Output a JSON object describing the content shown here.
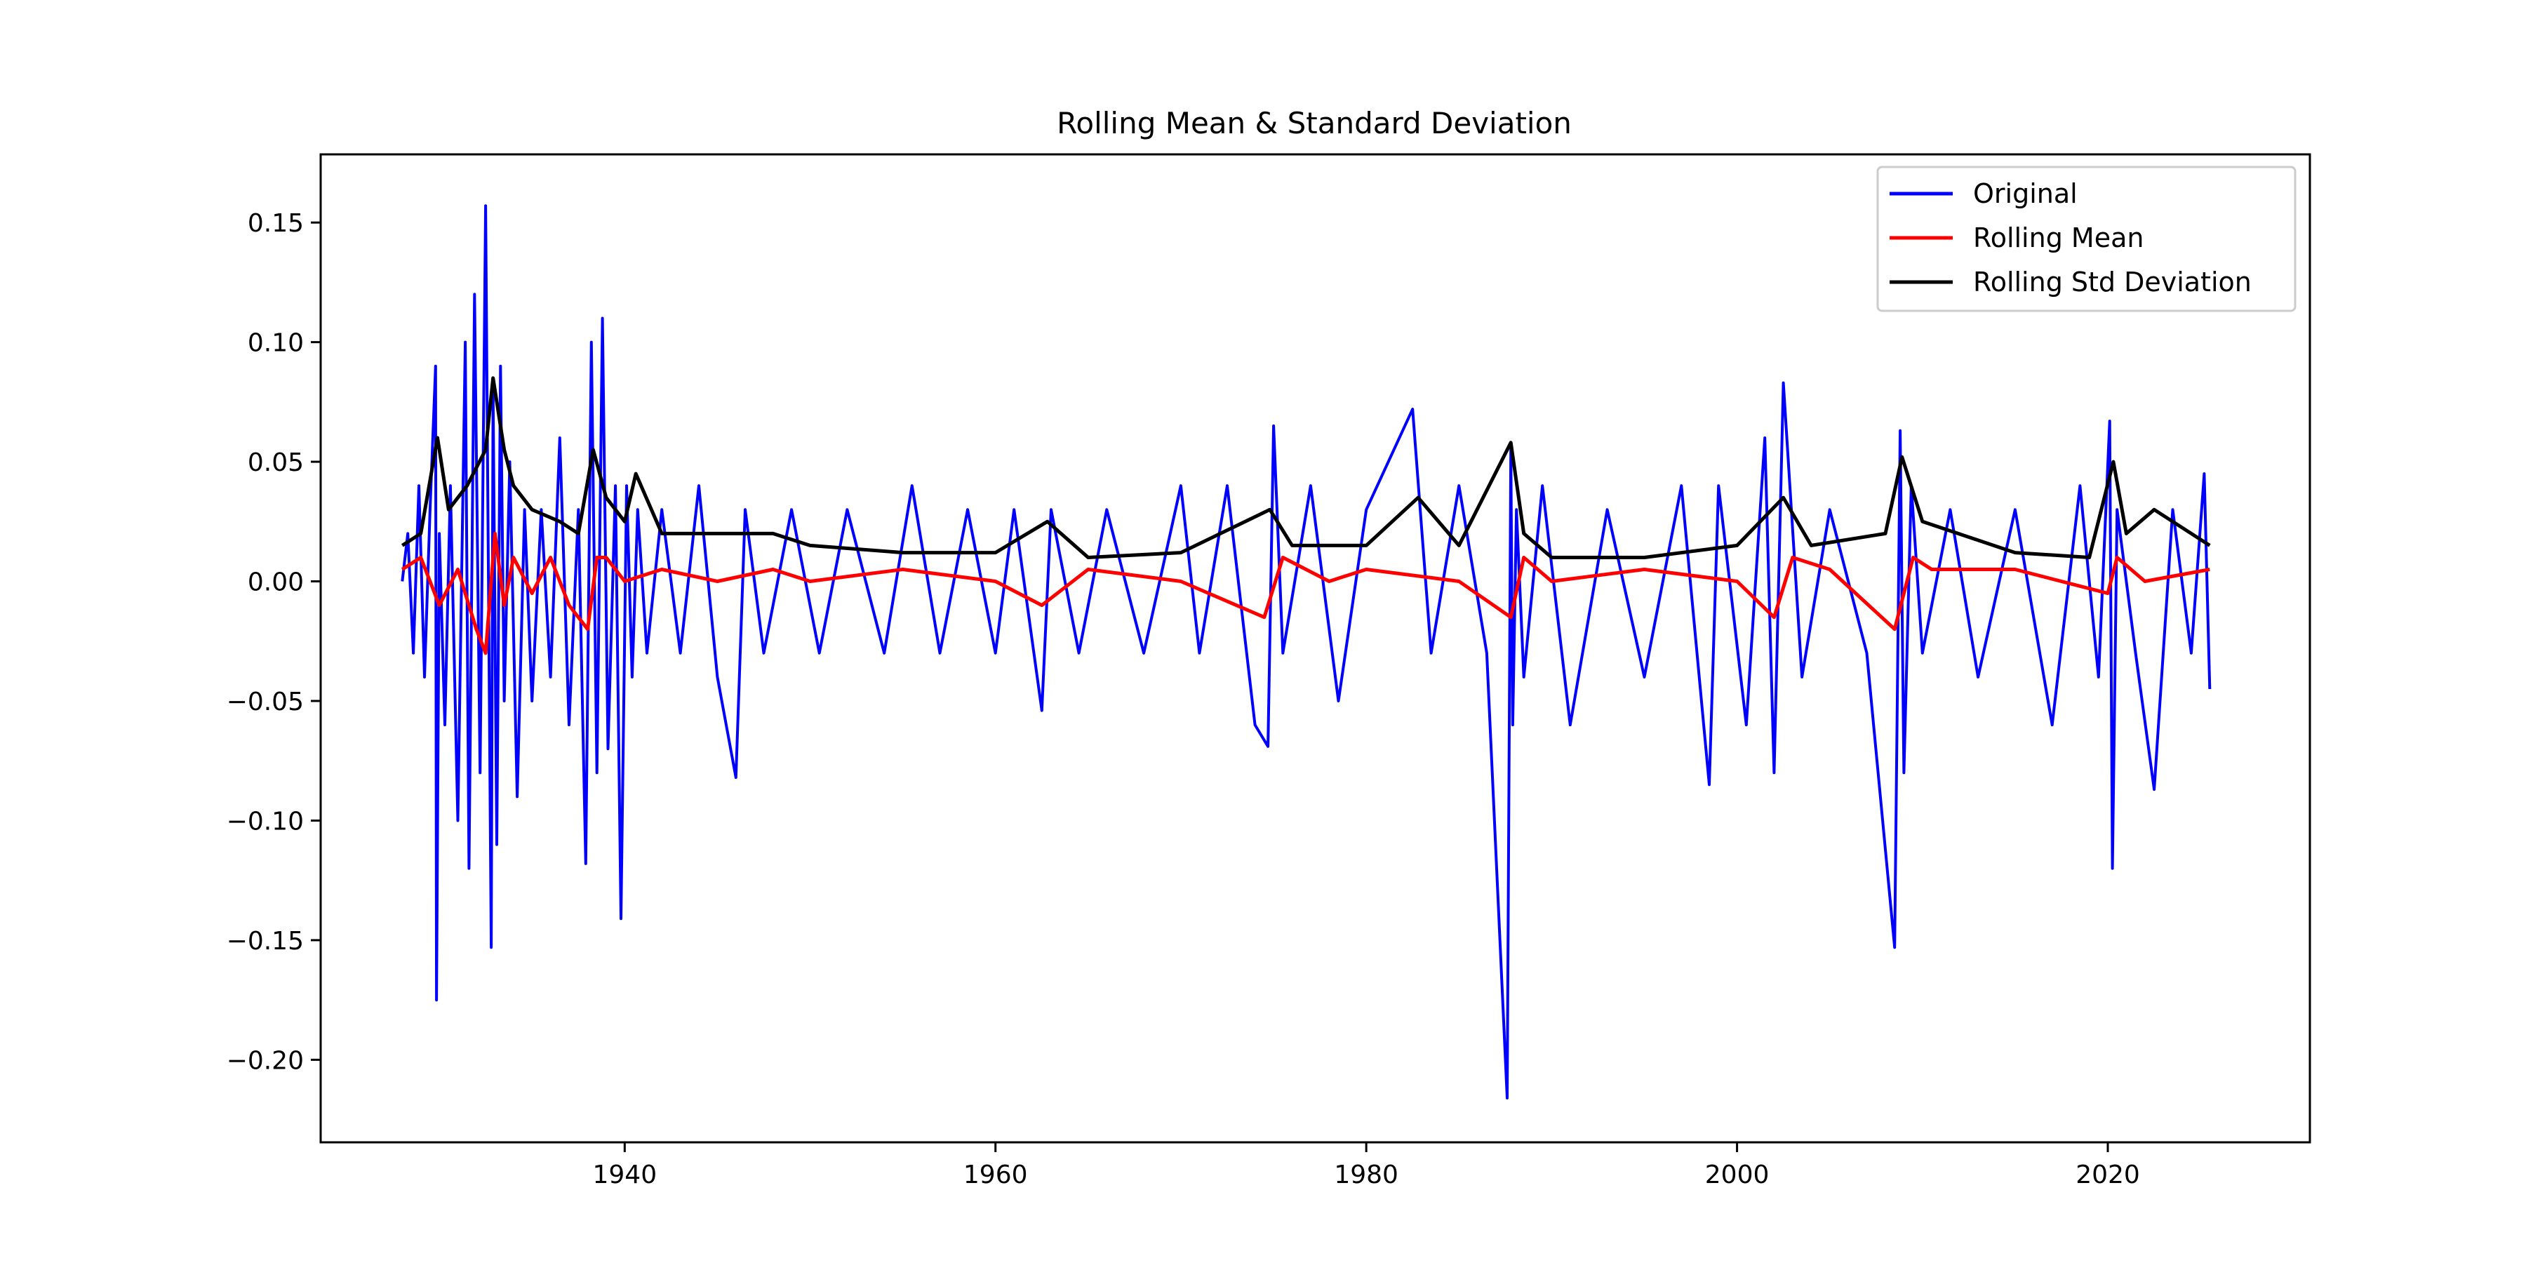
{
  "chart_data": {
    "type": "line",
    "title": "Rolling Mean & Standard Deviation",
    "xlabel": "",
    "ylabel": "",
    "x_axis": "date (year)",
    "xlim": [
      1923.6,
      2030.9
    ],
    "ylim": [
      -0.2345,
      0.1785
    ],
    "x_ticks": [
      1940,
      1960,
      1980,
      2000,
      2020
    ],
    "x_tick_labels": [
      "1940",
      "1960",
      "1980",
      "2000",
      "2020"
    ],
    "y_ticks": [
      0.15,
      0.1,
      0.05,
      0.0,
      -0.05,
      -0.1,
      -0.15,
      -0.2
    ],
    "y_tick_labels": [
      "0.15",
      "0.10",
      "0.05",
      "0.00",
      "−0.05",
      "−0.10",
      "−0.15",
      "−0.20"
    ],
    "grid": false,
    "legend": {
      "placement": "top-right"
    },
    "series": [
      {
        "name": "Original",
        "color": "#0000ff",
        "x": [
          1928.0,
          1928.3,
          1928.6,
          1928.9,
          1929.2,
          1929.5,
          1929.8,
          1929.85,
          1930.0,
          1930.3,
          1930.6,
          1931.0,
          1931.4,
          1931.6,
          1931.9,
          1932.2,
          1932.5,
          1932.8,
          1932.9,
          1933.1,
          1933.3,
          1933.5,
          1933.8,
          1934.2,
          1934.6,
          1935.0,
          1935.5,
          1936.0,
          1936.5,
          1937.0,
          1937.5,
          1937.9,
          1938.2,
          1938.5,
          1938.8,
          1939.1,
          1939.5,
          1939.8,
          1940.1,
          1940.4,
          1940.7,
          1941.2,
          1942.0,
          1943.0,
          1944.0,
          1945.0,
          1946.0,
          1946.5,
          1947.5,
          1949.0,
          1950.5,
          1952.0,
          1954.0,
          1955.5,
          1957.0,
          1958.5,
          1960.0,
          1961.0,
          1962.5,
          1963.0,
          1964.5,
          1966.0,
          1968.0,
          1970.0,
          1971.0,
          1972.5,
          1974.0,
          1974.7,
          1975.0,
          1975.5,
          1977.0,
          1978.5,
          1980.0,
          1982.5,
          1983.5,
          1985.0,
          1986.5,
          1987.6,
          1987.8,
          1987.9,
          1988.1,
          1988.5,
          1989.5,
          1991.0,
          1993.0,
          1995.0,
          1997.0,
          1998.5,
          1999.0,
          2000.5,
          2001.5,
          2002.0,
          2002.5,
          2003.5,
          2005.0,
          2007.0,
          2008.5,
          2008.8,
          2009.0,
          2009.4,
          2010.0,
          2011.5,
          2013.0,
          2015.0,
          2017.0,
          2018.5,
          2019.5,
          2020.1,
          2020.25,
          2020.5,
          2021.5,
          2022.5,
          2023.5,
          2024.5,
          2025.2,
          2025.5
        ],
        "y": [
          0.0,
          0.02,
          -0.03,
          0.04,
          -0.04,
          0.03,
          0.09,
          -0.175,
          0.02,
          -0.06,
          0.04,
          -0.1,
          0.1,
          -0.12,
          0.12,
          -0.08,
          0.157,
          -0.153,
          0.08,
          -0.11,
          0.09,
          -0.05,
          0.05,
          -0.09,
          0.03,
          -0.05,
          0.03,
          -0.04,
          0.06,
          -0.06,
          0.03,
          -0.118,
          0.1,
          -0.08,
          0.11,
          -0.07,
          0.04,
          -0.141,
          0.04,
          -0.04,
          0.03,
          -0.03,
          0.03,
          -0.03,
          0.04,
          -0.04,
          -0.082,
          0.03,
          -0.03,
          0.03,
          -0.03,
          0.03,
          -0.03,
          0.04,
          -0.03,
          0.03,
          -0.03,
          0.03,
          -0.054,
          0.03,
          -0.03,
          0.03,
          -0.03,
          0.04,
          -0.03,
          0.04,
          -0.06,
          -0.069,
          0.065,
          -0.03,
          0.04,
          -0.05,
          0.03,
          0.072,
          -0.03,
          0.04,
          -0.03,
          -0.216,
          0.055,
          -0.06,
          0.03,
          -0.04,
          0.04,
          -0.06,
          0.03,
          -0.04,
          0.04,
          -0.085,
          0.04,
          -0.06,
          0.06,
          -0.08,
          0.083,
          -0.04,
          0.03,
          -0.03,
          -0.153,
          0.063,
          -0.08,
          0.04,
          -0.03,
          0.03,
          -0.04,
          0.03,
          -0.06,
          0.04,
          -0.04,
          0.067,
          -0.12,
          0.03,
          -0.03,
          -0.087,
          0.03,
          -0.03,
          0.045,
          -0.045
        ]
      },
      {
        "name": "Rolling Mean",
        "color": "#ff0000",
        "x": [
          1928.0,
          1929.0,
          1930.0,
          1931.0,
          1932.0,
          1932.5,
          1933.0,
          1933.5,
          1934.0,
          1935.0,
          1936.0,
          1937.0,
          1938.0,
          1938.5,
          1939.0,
          1940.0,
          1942.0,
          1945.0,
          1948.0,
          1950.0,
          1955.0,
          1960.0,
          1962.5,
          1965.0,
          1970.0,
          1974.5,
          1975.5,
          1978.0,
          1980.0,
          1985.0,
          1987.8,
          1988.5,
          1990.0,
          1995.0,
          2000.0,
          2002.0,
          2003.0,
          2005.0,
          2008.5,
          2009.5,
          2010.5,
          2015.0,
          2020.0,
          2020.5,
          2022.0,
          2025.5
        ],
        "y": [
          0.005,
          0.01,
          -0.01,
          0.005,
          -0.02,
          -0.03,
          0.02,
          -0.01,
          0.01,
          -0.005,
          0.01,
          -0.01,
          -0.02,
          0.01,
          0.01,
          0.0,
          0.005,
          0.0,
          0.005,
          0.0,
          0.005,
          0.0,
          -0.01,
          0.005,
          0.0,
          -0.015,
          0.01,
          0.0,
          0.005,
          0.0,
          -0.015,
          0.01,
          0.0,
          0.005,
          0.0,
          -0.015,
          0.01,
          0.005,
          -0.02,
          0.01,
          0.005,
          0.005,
          -0.005,
          0.01,
          0.0,
          0.005
        ]
      },
      {
        "name": "Rolling Std Deviation",
        "color": "#000000",
        "x": [
          1928.0,
          1929.0,
          1929.9,
          1930.5,
          1931.5,
          1932.5,
          1932.9,
          1933.5,
          1934.0,
          1935.0,
          1936.5,
          1937.5,
          1938.3,
          1939.0,
          1940.0,
          1940.6,
          1942.0,
          1945.0,
          1948.0,
          1950.0,
          1955.0,
          1960.0,
          1962.8,
          1965.0,
          1970.0,
          1974.8,
          1976.0,
          1980.0,
          1982.8,
          1985.0,
          1987.8,
          1988.5,
          1990.0,
          1995.0,
          2000.0,
          2002.5,
          2004.0,
          2008.0,
          2008.9,
          2010.0,
          2015.0,
          2019.0,
          2020.3,
          2021.0,
          2022.5,
          2025.5
        ],
        "y": [
          0.015,
          0.02,
          0.06,
          0.03,
          0.04,
          0.055,
          0.085,
          0.055,
          0.04,
          0.03,
          0.025,
          0.02,
          0.055,
          0.035,
          0.025,
          0.045,
          0.02,
          0.02,
          0.02,
          0.015,
          0.012,
          0.012,
          0.025,
          0.01,
          0.012,
          0.03,
          0.015,
          0.015,
          0.035,
          0.015,
          0.058,
          0.02,
          0.01,
          0.01,
          0.015,
          0.035,
          0.015,
          0.02,
          0.052,
          0.025,
          0.012,
          0.01,
          0.05,
          0.02,
          0.03,
          0.015
        ]
      }
    ]
  }
}
